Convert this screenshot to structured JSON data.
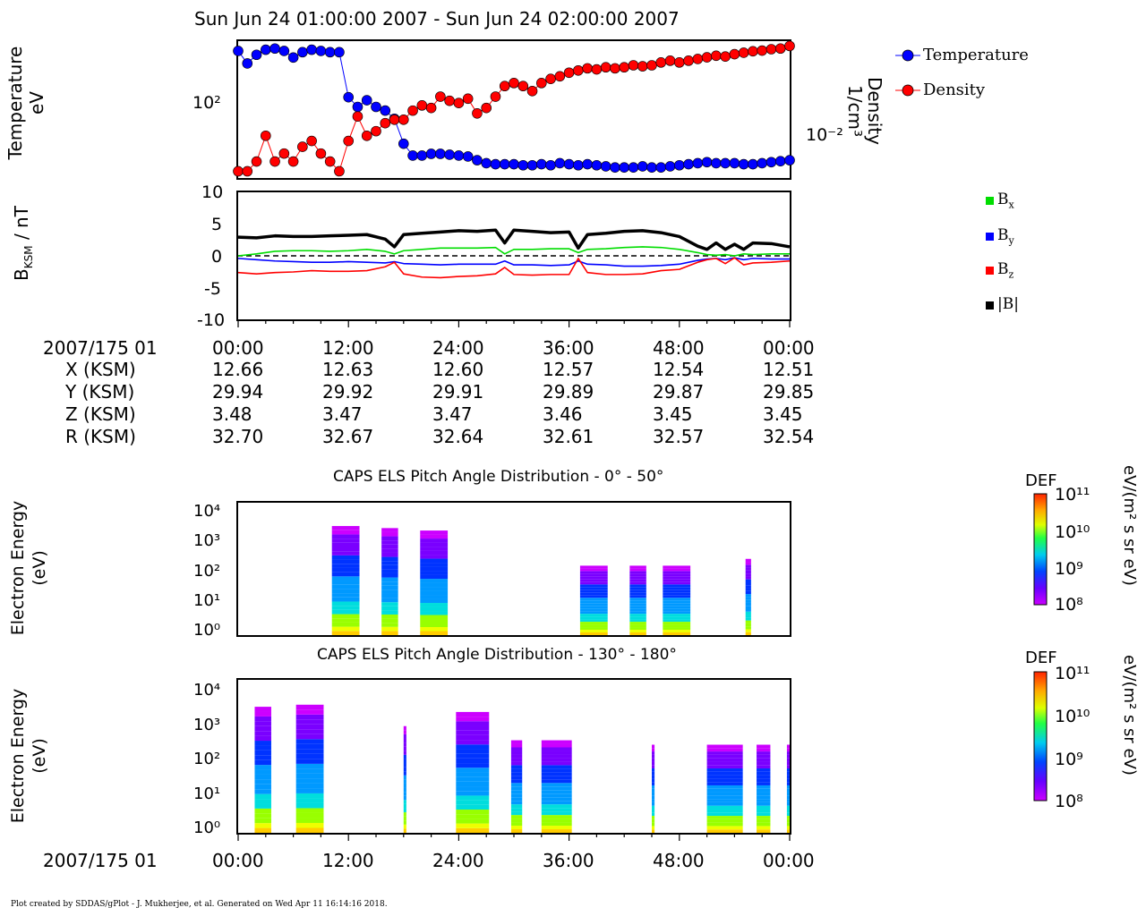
{
  "title": "Sun Jun 24 01:00:00 2007 - Sun Jun 24 02:00:00 2007",
  "footer": "Plot created by SDDAS/gPlot - J. Mukherjee, et al.  Generated on Wed Apr 11 16:14:16 2018.",
  "colors": {
    "temperature": "#0000ff",
    "density": "#ff0000",
    "bx": "#00dd00",
    "by": "#0000ff",
    "bz": "#ff0000",
    "bmag": "#000000"
  },
  "panel1": {
    "ylabel": [
      "Temperature",
      "eV"
    ],
    "ylabel_right": [
      "Density",
      "1/cm³"
    ],
    "left_tick": "10²",
    "right_tick": "10⁻²",
    "legend": [
      "Temperature",
      "Density"
    ]
  },
  "panel2": {
    "ylabel": "B",
    "ylabel_sub": "KSM",
    "ylabel_tail": " / nT",
    "ticks": [
      "10",
      "5",
      "0",
      "-5",
      "-10"
    ],
    "legend": [
      {
        "base": "B",
        "sub": "x"
      },
      {
        "base": "B",
        "sub": "y"
      },
      {
        "base": "B",
        "sub": "z"
      },
      {
        "base": "|B|",
        "sub": ""
      }
    ]
  },
  "ephemeris": {
    "labels": [
      "2007/175 01",
      "X (KSM)",
      "Y (KSM)",
      "Z (KSM)",
      "R (KSM)"
    ],
    "times": [
      "00:00",
      "12:00",
      "24:00",
      "36:00",
      "48:00",
      "00:00"
    ],
    "X": [
      "12.66",
      "12.63",
      "12.60",
      "12.57",
      "12.54",
      "12.51"
    ],
    "Y": [
      "29.94",
      "29.92",
      "29.91",
      "29.89",
      "29.87",
      "29.85"
    ],
    "Z": [
      "3.48",
      "3.47",
      "3.47",
      "3.46",
      "3.45",
      "3.45"
    ],
    "R": [
      "32.70",
      "32.67",
      "32.64",
      "32.61",
      "32.57",
      "32.54"
    ]
  },
  "spectrogram1": {
    "title": "CAPS ELS Pitch Angle Distribution - 0° - 50°",
    "ylabel": [
      "Electron Energy",
      "(eV)"
    ],
    "yticks": [
      "10⁴",
      "10³",
      "10²",
      "10¹",
      "10⁰"
    ]
  },
  "spectrogram2": {
    "title": "CAPS ELS Pitch Angle Distribution - 130° - 180°",
    "ylabel": [
      "Electron Energy",
      "(eV)"
    ],
    "yticks": [
      "10⁴",
      "10³",
      "10²",
      "10¹",
      "10⁰"
    ]
  },
  "colorbar": {
    "title": "DEF",
    "unit": "eV/(m² s sr eV)",
    "ticks": [
      "10¹¹",
      "10¹⁰",
      "10⁹",
      "10⁸"
    ]
  },
  "bottom_axis": {
    "label": "2007/175 01",
    "times": [
      "00:00",
      "12:00",
      "24:00",
      "36:00",
      "48:00",
      "00:00"
    ]
  },
  "chart_data": [
    {
      "type": "scatter",
      "xlabel": "",
      "ylabel": "Temperature eV",
      "xlim": [
        0,
        60
      ],
      "series": [
        {
          "name": "Temperature",
          "axis": "left",
          "x": [
            0,
            1,
            2,
            3,
            4,
            5,
            6,
            7,
            8,
            9,
            10,
            11,
            12,
            13,
            14,
            15,
            16,
            17,
            18,
            19,
            20,
            21,
            22,
            23,
            24,
            25,
            26,
            27,
            28,
            29,
            30,
            31,
            32,
            33,
            34,
            35,
            36,
            37,
            38,
            39,
            40,
            41,
            42,
            43,
            44,
            45,
            46,
            47,
            48,
            49,
            50,
            51,
            52,
            53,
            54,
            55,
            56,
            57,
            58,
            59,
            60
          ],
          "y": [
            430,
            340,
            400,
            440,
            450,
            430,
            380,
            420,
            440,
            430,
            420,
            420,
            180,
            150,
            170,
            150,
            140,
            120,
            75,
            60,
            60,
            62,
            62,
            61,
            60,
            59,
            55,
            52,
            51,
            51,
            51,
            50,
            50,
            51,
            50,
            52,
            51,
            50,
            51,
            50,
            49,
            48,
            48,
            48,
            49,
            48,
            48,
            49,
            50,
            51,
            52,
            53,
            52,
            52,
            52,
            51,
            51,
            52,
            53,
            54,
            55
          ]
        },
        {
          "name": "Density",
          "axis": "right",
          "x": [
            0,
            1,
            2,
            3,
            4,
            5,
            6,
            7,
            8,
            9,
            10,
            11,
            12,
            13,
            14,
            15,
            16,
            17,
            18,
            19,
            20,
            21,
            22,
            23,
            24,
            25,
            26,
            27,
            28,
            29,
            30,
            31,
            32,
            33,
            34,
            35,
            36,
            37,
            38,
            39,
            40,
            41,
            42,
            43,
            44,
            45,
            46,
            47,
            48,
            49,
            50,
            51,
            52,
            53,
            54,
            55,
            56,
            57,
            58,
            59,
            60
          ],
          "y": [
            0.004,
            0.004,
            0.005,
            0.009,
            0.005,
            0.006,
            0.005,
            0.007,
            0.008,
            0.006,
            0.005,
            0.004,
            0.008,
            0.014,
            0.009,
            0.01,
            0.012,
            0.013,
            0.013,
            0.016,
            0.018,
            0.017,
            0.022,
            0.02,
            0.019,
            0.021,
            0.015,
            0.017,
            0.022,
            0.028,
            0.03,
            0.028,
            0.025,
            0.03,
            0.033,
            0.035,
            0.038,
            0.04,
            0.042,
            0.041,
            0.043,
            0.042,
            0.043,
            0.045,
            0.044,
            0.045,
            0.048,
            0.05,
            0.048,
            0.05,
            0.052,
            0.054,
            0.056,
            0.055,
            0.058,
            0.06,
            0.062,
            0.063,
            0.065,
            0.066,
            0.07
          ]
        }
      ]
    },
    {
      "type": "line",
      "xlabel": "",
      "ylabel": "B_KSM / nT",
      "xlim": [
        0,
        60
      ],
      "ylim": [
        -10,
        10
      ],
      "x": [
        0,
        2,
        4,
        6,
        8,
        10,
        12,
        14,
        16,
        17,
        18,
        20,
        22,
        24,
        26,
        28,
        29,
        30,
        32,
        34,
        36,
        37,
        38,
        40,
        42,
        44,
        46,
        48,
        50,
        51,
        52,
        53,
        54,
        55,
        56,
        58,
        60
      ],
      "series": [
        {
          "name": "Bx",
          "values": [
            0.0,
            0.3,
            0.7,
            0.8,
            0.8,
            0.7,
            0.8,
            1.0,
            0.7,
            0.3,
            0.8,
            1.0,
            1.2,
            1.2,
            1.2,
            1.3,
            0.3,
            1.0,
            1.0,
            1.1,
            1.1,
            0.5,
            1.0,
            1.1,
            1.3,
            1.4,
            1.3,
            1.0,
            0.5,
            0.2,
            0.1,
            0.2,
            0.0,
            0.3,
            0.2,
            0.3,
            0.3
          ]
        },
        {
          "name": "By",
          "values": [
            -0.4,
            -0.6,
            -0.8,
            -0.9,
            -1.0,
            -1.0,
            -0.9,
            -1.0,
            -1.1,
            -0.9,
            -1.2,
            -1.3,
            -1.4,
            -1.3,
            -1.3,
            -1.3,
            -0.8,
            -1.4,
            -1.4,
            -1.5,
            -1.4,
            -0.8,
            -1.3,
            -1.4,
            -1.6,
            -1.6,
            -1.5,
            -1.3,
            -0.7,
            -0.5,
            -0.4,
            -0.6,
            -0.3,
            -0.6,
            -0.4,
            -0.5,
            -0.5
          ]
        },
        {
          "name": "Bz",
          "values": [
            -2.6,
            -2.8,
            -2.6,
            -2.5,
            -2.3,
            -2.4,
            -2.4,
            -2.3,
            -1.7,
            -1.0,
            -2.8,
            -3.3,
            -3.4,
            -3.2,
            -3.1,
            -2.8,
            -1.8,
            -2.9,
            -3.0,
            -2.9,
            -2.9,
            -0.4,
            -2.6,
            -2.9,
            -2.9,
            -2.8,
            -2.3,
            -2.1,
            -1.0,
            -0.6,
            -0.4,
            -1.2,
            -0.3,
            -1.4,
            -1.1,
            -1.0,
            -0.8
          ]
        },
        {
          "name": "|B|",
          "values": [
            2.9,
            2.8,
            3.1,
            3.0,
            3.0,
            3.1,
            3.2,
            3.3,
            2.6,
            1.4,
            3.3,
            3.5,
            3.7,
            3.9,
            3.8,
            4.0,
            2.0,
            4.0,
            3.8,
            3.6,
            3.7,
            1.2,
            3.3,
            3.5,
            3.8,
            3.9,
            3.6,
            3.0,
            1.5,
            1.0,
            2.0,
            1.0,
            1.8,
            1.0,
            2.0,
            1.9,
            1.4
          ]
        }
      ]
    },
    {
      "type": "heatmap",
      "title": "CAPS ELS Pitch Angle Distribution - 0° - 50°",
      "ylabel": "Electron Energy (eV)",
      "xlim": [
        0,
        60
      ],
      "ylim": [
        1,
        20000
      ],
      "colorbar": {
        "label": "DEF eV/(m² s sr eV)",
        "range": [
          100000000.0,
          100000000000.0
        ],
        "scale": "log"
      },
      "segments": [
        {
          "x0": 10.2,
          "x1": 13.2,
          "emax": 3500
        },
        {
          "x0": 15.6,
          "x1": 17.4,
          "emax": 3000
        },
        {
          "x0": 19.8,
          "x1": 22.8,
          "emax": 2500
        },
        {
          "x0": 37.2,
          "x1": 40.2,
          "emax": 180
        },
        {
          "x0": 42.6,
          "x1": 44.4,
          "emax": 180
        },
        {
          "x0": 46.2,
          "x1": 49.2,
          "emax": 180
        },
        {
          "x0": 55.2,
          "x1": 55.8,
          "emax": 300
        }
      ]
    },
    {
      "type": "heatmap",
      "title": "CAPS ELS Pitch Angle Distribution - 130° - 180°",
      "ylabel": "Electron Energy (eV)",
      "xlim": [
        0,
        60
      ],
      "ylim": [
        1,
        20000
      ],
      "colorbar": {
        "label": "DEF eV/(m² s sr eV)",
        "range": [
          100000000.0,
          100000000000.0
        ],
        "scale": "log"
      },
      "segments": [
        {
          "x0": 1.8,
          "x1": 3.6,
          "emax": 3500
        },
        {
          "x0": 6.3,
          "x1": 9.3,
          "emax": 4000
        },
        {
          "x0": 18.0,
          "x1": 18.3,
          "emax": 1000
        },
        {
          "x0": 23.7,
          "x1": 27.3,
          "emax": 2500
        },
        {
          "x0": 29.7,
          "x1": 30.9,
          "emax": 400
        },
        {
          "x0": 33.0,
          "x1": 36.3,
          "emax": 400
        },
        {
          "x0": 45.0,
          "x1": 45.3,
          "emax": 300
        },
        {
          "x0": 51.0,
          "x1": 54.9,
          "emax": 300
        },
        {
          "x0": 56.4,
          "x1": 57.9,
          "emax": 300
        },
        {
          "x0": 59.7,
          "x1": 60.0,
          "emax": 300
        }
      ]
    }
  ]
}
